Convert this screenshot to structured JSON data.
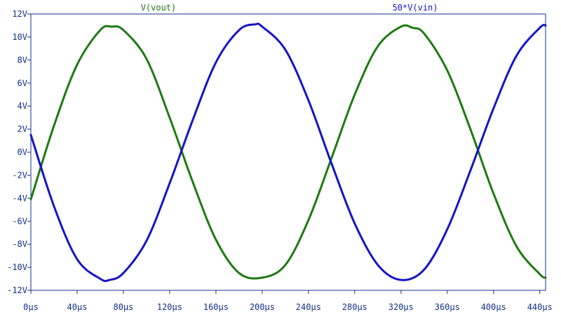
{
  "chart_data": {
    "type": "line",
    "title": "",
    "xlabel": "",
    "ylabel": "",
    "xlim": [
      0,
      445
    ],
    "ylim": [
      -12,
      12
    ],
    "x_unit": "µs",
    "y_unit": "V",
    "grid": false,
    "legend_position": "top",
    "x_tick_labels": [
      "0µs",
      "40µs",
      "80µs",
      "120µs",
      "160µs",
      "200µs",
      "240µs",
      "280µs",
      "320µs",
      "360µs",
      "400µs",
      "440µs"
    ],
    "x_tick_values": [
      0,
      40,
      80,
      120,
      160,
      200,
      240,
      280,
      320,
      360,
      400,
      440
    ],
    "y_tick_labels": [
      "12V",
      "10V",
      "8V",
      "6V",
      "4V",
      "2V",
      "0V",
      "-2V",
      "-4V",
      "-6V",
      "-8V",
      "-10V",
      "-12V"
    ],
    "y_tick_values": [
      12,
      10,
      8,
      6,
      4,
      2,
      0,
      -2,
      -4,
      -6,
      -8,
      -10,
      -12
    ],
    "series": [
      {
        "name": "V(vout)",
        "color": "#1e7a12",
        "x": [
          0,
          20,
          40,
          60,
          70,
          80,
          100,
          120,
          140,
          160,
          180,
          200,
          220,
          240,
          260,
          280,
          300,
          320,
          330,
          340,
          360,
          380,
          400,
          420,
          440,
          445
        ],
        "y": [
          -4.1,
          2.3,
          7.6,
          10.6,
          10.9,
          10.6,
          8.1,
          3.0,
          -2.6,
          -7.6,
          -10.5,
          -10.9,
          -9.8,
          -5.9,
          -0.5,
          5.0,
          9.2,
          10.9,
          10.8,
          10.3,
          7.1,
          2.0,
          -3.6,
          -8.2,
          -10.6,
          -10.9
        ]
      },
      {
        "name": "50*V(vin)",
        "color": "#1414c8",
        "x": [
          0,
          20,
          40,
          60,
          68,
          80,
          100,
          120,
          140,
          160,
          180,
          194,
          200,
          220,
          240,
          260,
          280,
          300,
          320,
          340,
          360,
          380,
          400,
          420,
          440,
          445
        ],
        "y": [
          1.5,
          -4.7,
          -9.3,
          -11.0,
          -11.1,
          -10.5,
          -7.7,
          -2.7,
          2.8,
          7.8,
          10.6,
          11.1,
          10.9,
          8.9,
          4.5,
          -1.0,
          -6.2,
          -9.8,
          -11.1,
          -10.2,
          -6.7,
          -1.6,
          3.8,
          8.4,
          10.8,
          11.0
        ]
      }
    ]
  }
}
